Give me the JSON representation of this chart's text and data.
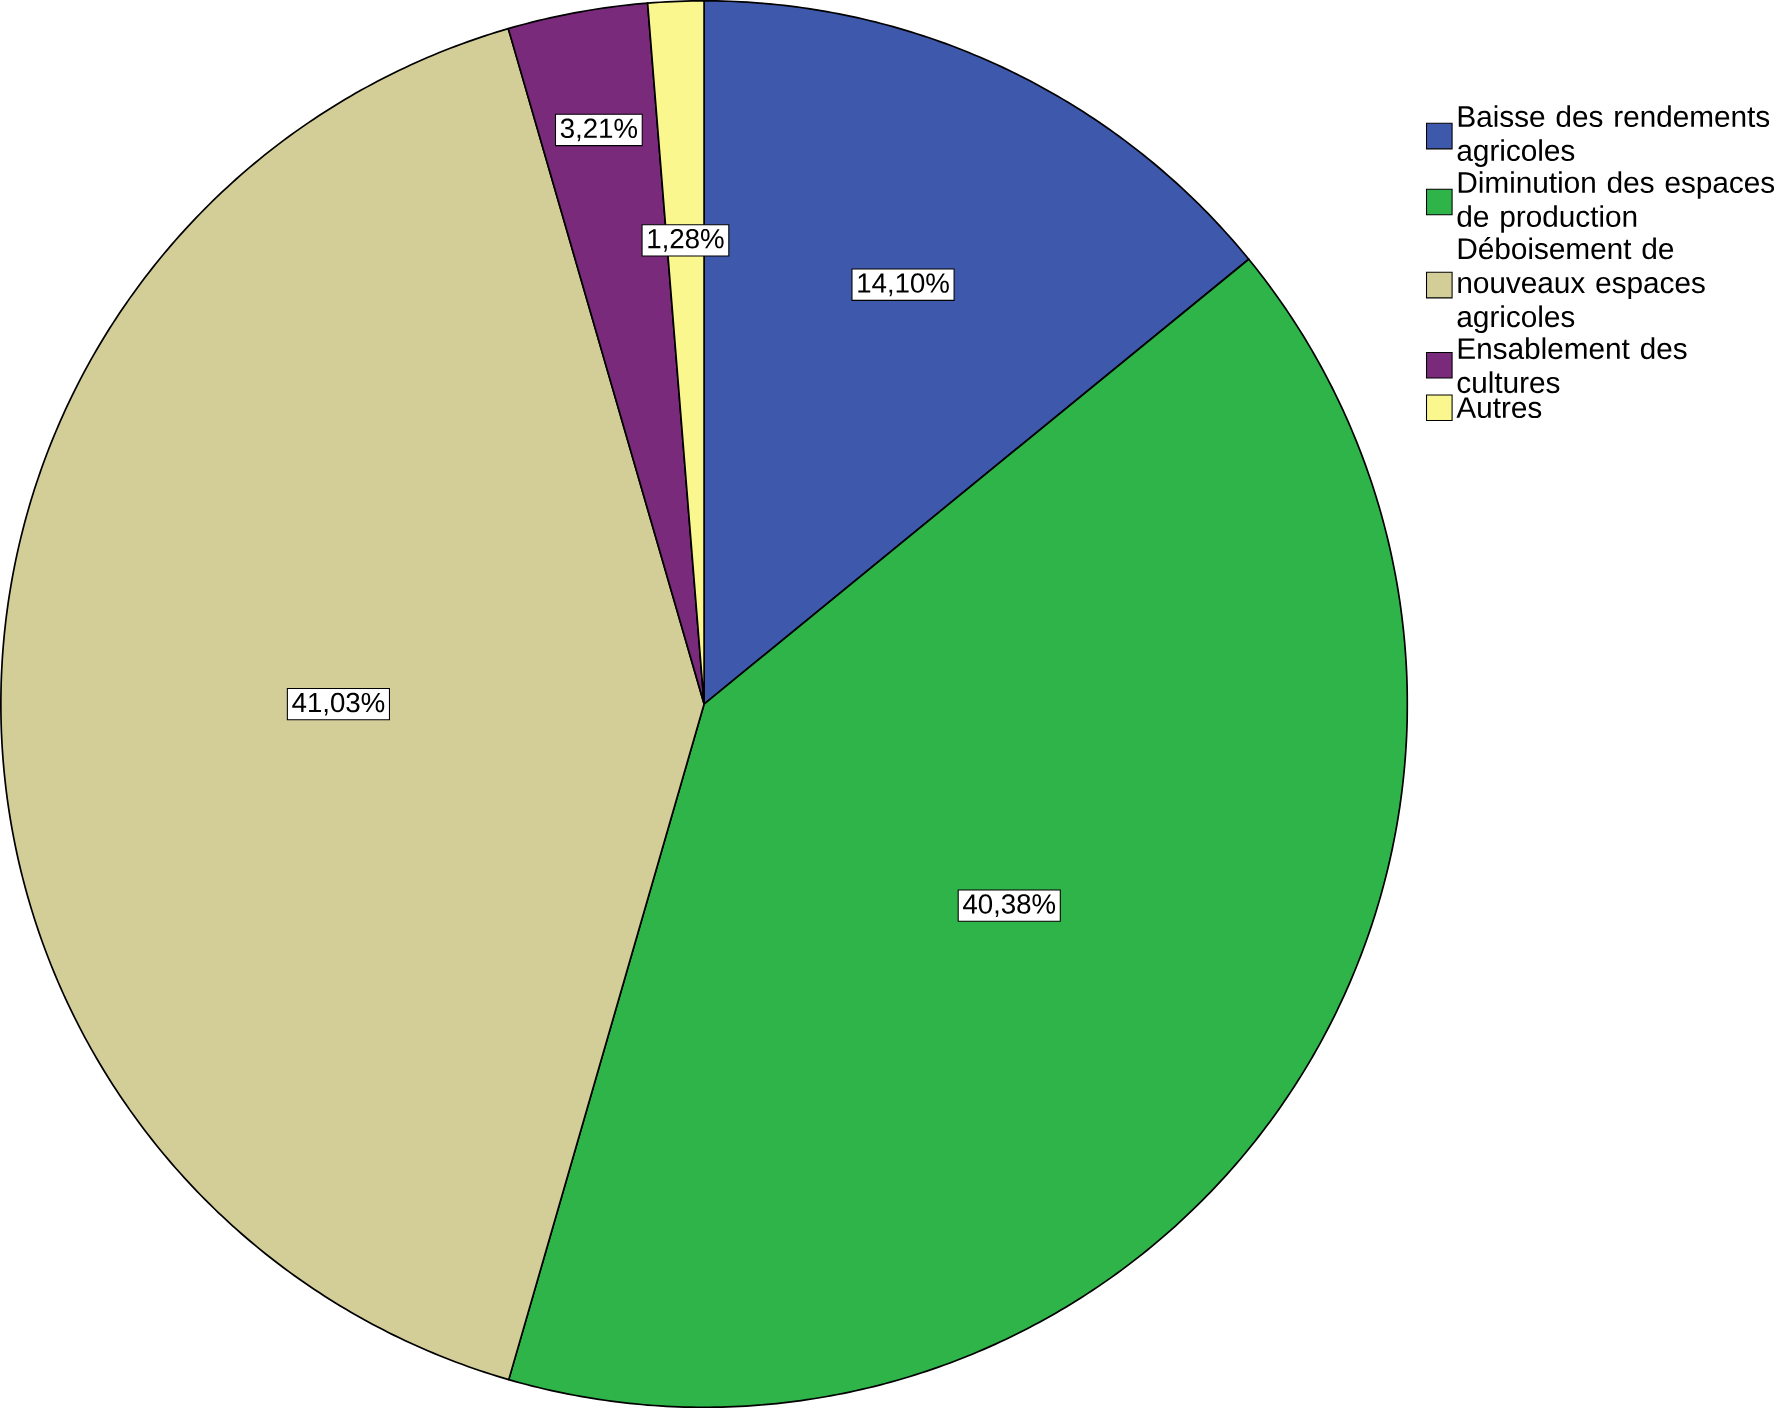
{
  "chart_data": {
    "type": "pie",
    "categories": [
      "Baisse des rendements agricoles",
      "Diminution des espaces de production",
      "Déboisement de nouveaux espaces agricoles",
      "Ensablement des cultures",
      "Autres"
    ],
    "values": [
      14.1,
      40.38,
      41.03,
      3.21,
      1.28
    ],
    "colors": [
      "#3e58ac",
      "#2fb44a",
      "#d3ce97",
      "#7a2a7a",
      "#fbf78f"
    ],
    "value_labels": [
      "14,10%",
      "40,38%",
      "41,03%",
      "3,21%",
      "1,28%"
    ],
    "legend": "right"
  }
}
